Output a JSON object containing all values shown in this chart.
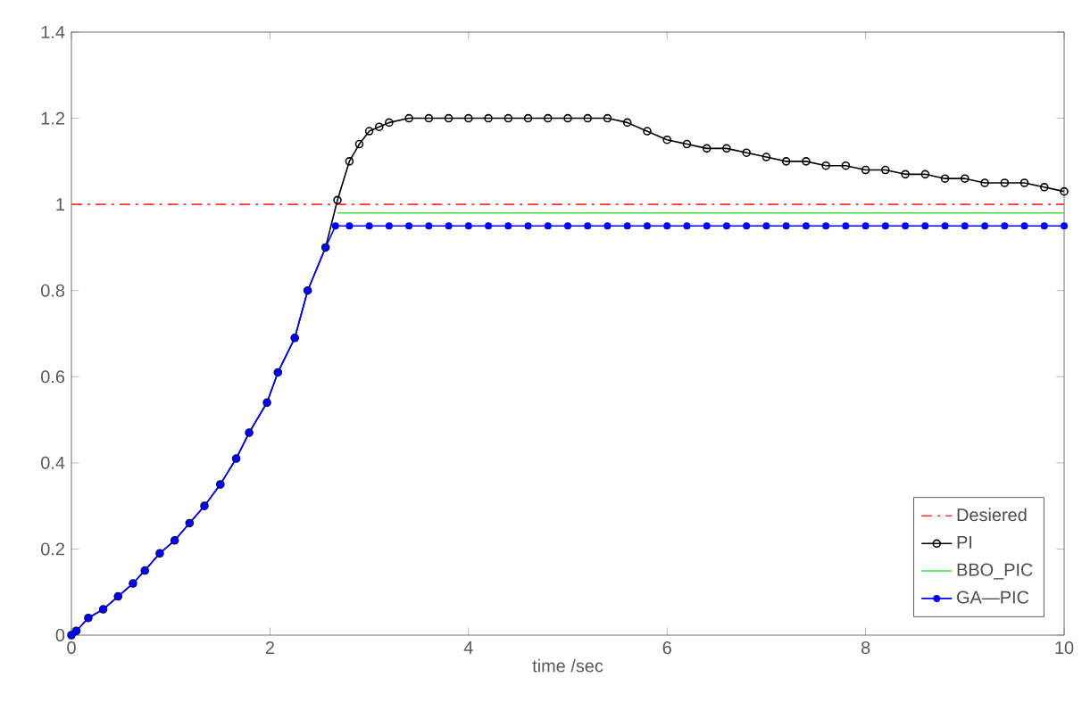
{
  "chart_data": {
    "type": "line",
    "xlabel": "time /sec",
    "xlim": [
      0,
      10
    ],
    "ylim": [
      0,
      1.4
    ],
    "xticks": [
      0,
      2,
      4,
      6,
      8,
      10
    ],
    "yticks": [
      0,
      0.2,
      0.4,
      0.6,
      0.8,
      1,
      1.2,
      1.4
    ],
    "legend": "bottom right",
    "grid": false,
    "series": [
      {
        "name": "Desiered",
        "color": "#ff3333",
        "line_style": "dashed",
        "marker": "none",
        "x": [
          0,
          10
        ],
        "values": [
          1,
          1
        ]
      },
      {
        "name": "PI",
        "color": "#000000",
        "line_style": "solid",
        "marker": "circle",
        "x": [
          0,
          0.05,
          0.17,
          0.32,
          0.47,
          0.62,
          0.74,
          0.89,
          1.04,
          1.19,
          1.34,
          1.5,
          1.66,
          1.79,
          1.97,
          2.08,
          2.25,
          2.38,
          2.56,
          2.68,
          2.8,
          2.9,
          3.0,
          3.1,
          3.2,
          3.4,
          3.6,
          3.8,
          4.0,
          4.2,
          4.4,
          4.6,
          4.8,
          5.0,
          5.2,
          5.4,
          5.6,
          5.8,
          6.0,
          6.2,
          6.4,
          6.6,
          6.8,
          7.0,
          7.2,
          7.4,
          7.6,
          7.8,
          8.0,
          8.2,
          8.4,
          8.6,
          8.8,
          9.0,
          9.2,
          9.4,
          9.6,
          9.8,
          10
        ],
        "values": [
          0,
          0.01,
          0.04,
          0.06,
          0.09,
          0.12,
          0.15,
          0.19,
          0.22,
          0.26,
          0.3,
          0.35,
          0.41,
          0.47,
          0.54,
          0.61,
          0.69,
          0.8,
          0.9,
          1.01,
          1.1,
          1.14,
          1.17,
          1.18,
          1.19,
          1.2,
          1.2,
          1.2,
          1.2,
          1.2,
          1.2,
          1.2,
          1.2,
          1.2,
          1.2,
          1.2,
          1.19,
          1.17,
          1.15,
          1.14,
          1.13,
          1.13,
          1.12,
          1.11,
          1.1,
          1.1,
          1.09,
          1.09,
          1.08,
          1.08,
          1.07,
          1.07,
          1.06,
          1.06,
          1.05,
          1.05,
          1.05,
          1.04,
          1.03
        ]
      },
      {
        "name": "BBO_PIC",
        "color": "#44dd44",
        "line_style": "solid",
        "marker": "none",
        "x": [
          2.68,
          10
        ],
        "values": [
          0.98,
          0.98
        ]
      },
      {
        "name": "GA—PIC",
        "color": "#0000ff",
        "line_style": "solid",
        "marker": "circle*",
        "x": [
          0,
          0.05,
          0.17,
          0.32,
          0.47,
          0.62,
          0.74,
          0.89,
          1.04,
          1.19,
          1.34,
          1.5,
          1.66,
          1.79,
          1.97,
          2.08,
          2.25,
          2.38,
          2.56,
          2.66,
          2.8,
          3.0,
          3.2,
          3.4,
          3.6,
          3.8,
          4.0,
          4.2,
          4.4,
          4.6,
          4.8,
          5.0,
          5.2,
          5.4,
          5.6,
          5.8,
          6.0,
          6.2,
          6.4,
          6.6,
          6.8,
          7.0,
          7.2,
          7.4,
          7.6,
          7.8,
          8.0,
          8.2,
          8.4,
          8.6,
          8.8,
          9.0,
          9.2,
          9.4,
          9.6,
          9.8,
          10
        ],
        "values": [
          0,
          0.01,
          0.04,
          0.06,
          0.09,
          0.12,
          0.15,
          0.19,
          0.22,
          0.26,
          0.3,
          0.35,
          0.41,
          0.47,
          0.54,
          0.61,
          0.69,
          0.8,
          0.9,
          0.95,
          0.95,
          0.95,
          0.95,
          0.95,
          0.95,
          0.95,
          0.95,
          0.95,
          0.95,
          0.95,
          0.95,
          0.95,
          0.95,
          0.95,
          0.95,
          0.95,
          0.95,
          0.95,
          0.95,
          0.95,
          0.95,
          0.95,
          0.95,
          0.95,
          0.95,
          0.95,
          0.95,
          0.95,
          0.95,
          0.95,
          0.95,
          0.95,
          0.95,
          0.95,
          0.95,
          0.95,
          0.95
        ]
      }
    ]
  }
}
